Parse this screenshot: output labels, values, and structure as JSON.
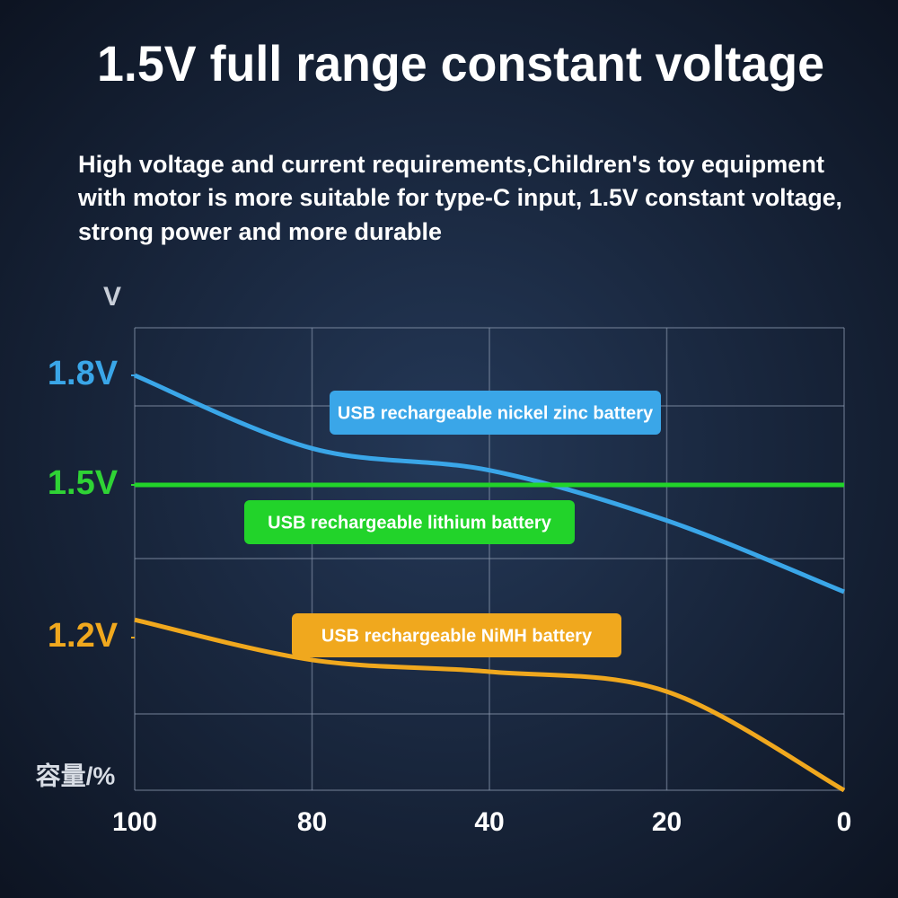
{
  "chart_data": {
    "type": "line",
    "title": "1.5V full range constant voltage",
    "subtitle_lines": [
      "High voltage and current requirements,Children's toy equipment",
      "with motor is more suitable for type-C input, 1.5V constant voltage,",
      "strong power and more durable"
    ],
    "y_label": "V",
    "x_label": "容量/%",
    "categories": [
      "100",
      "80",
      "40",
      "20",
      "0"
    ],
    "ylim": [
      0.9,
      1.95
    ],
    "yticks": [
      {
        "value": 1.8,
        "label": "1.8V",
        "color": "#3aa6e8"
      },
      {
        "value": 1.5,
        "label": "1.5V",
        "color": "#2fd335"
      },
      {
        "value": 1.2,
        "label": "1.2V",
        "color": "#f0a81e"
      }
    ],
    "series": [
      {
        "name": "USB rechargeable nickel zinc battery",
        "color": "#3aa6e8",
        "values": [
          1.8,
          1.6,
          1.54,
          1.43,
          1.29
        ]
      },
      {
        "name": "USB rechargeable lithium battery",
        "color": "#22d32a",
        "values": [
          1.5,
          1.5,
          1.5,
          1.5,
          1.5
        ]
      },
      {
        "name": "USB rechargeable NiMH battery",
        "color": "#f0a81e",
        "values": [
          1.235,
          1.156,
          1.133,
          1.094,
          0.9
        ]
      }
    ]
  }
}
